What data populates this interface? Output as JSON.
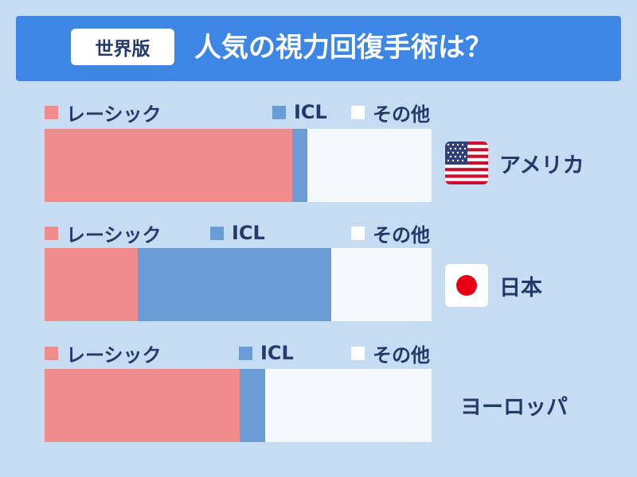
{
  "header": {
    "badge": "世界版",
    "title": "人気の視力回復手術は？"
  },
  "colors": {
    "lasik": "#f08c8c",
    "icl": "#6a9cd6",
    "other": "#f5f8fc"
  },
  "chart_data": {
    "type": "bar",
    "orientation": "horizontal-stacked",
    "unit": "share",
    "series": [
      {
        "key": "lasik",
        "name": "レーシック"
      },
      {
        "key": "icl",
        "name": "ICL"
      },
      {
        "key": "other",
        "name": "その他"
      }
    ],
    "rows": [
      {
        "country": "アメリカ",
        "flag": "us-flag-icon",
        "values": [
          64,
          4,
          32
        ]
      },
      {
        "country": "日本",
        "flag": "japan-flag-icon",
        "values": [
          24,
          50,
          26
        ]
      },
      {
        "country": "ヨーロッパ",
        "flag": "",
        "values": [
          50.5,
          6.5,
          43
        ]
      }
    ],
    "xlim": [
      0,
      100
    ],
    "legend": "above each bar"
  }
}
